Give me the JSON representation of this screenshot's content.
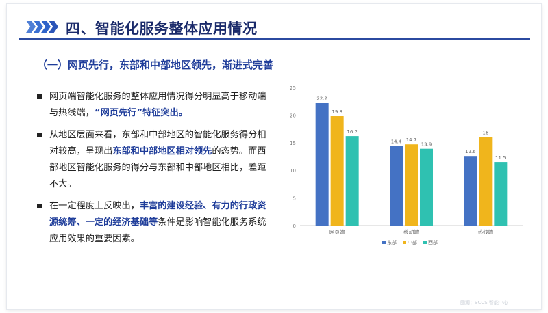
{
  "header": {
    "title": "四、智能化服务整体应用情况"
  },
  "subtitle": "（一）网页先行，东部和中部地区领先，渐进式完善",
  "bullets": [
    {
      "parts": [
        {
          "text": "网页端智能化服务的整体应用情况得分明显高于移动端与热线端，",
          "hl": false
        },
        {
          "text": "“网页先行”特征突出。",
          "hl": true
        }
      ]
    },
    {
      "parts": [
        {
          "text": "从地区层面来看，东部和中部地区的智能化服务得分相对较高，呈现出",
          "hl": false
        },
        {
          "text": "东部和中部地区相对领先",
          "hl": true
        },
        {
          "text": "的态势。而西部地区智能化服务的得分与东部和中部地区相比，差距不大。",
          "hl": false
        }
      ]
    },
    {
      "parts": [
        {
          "text": "在一定程度上反映出，",
          "hl": false
        },
        {
          "text": "丰富的建设经验、有力的行政资源统筹、一定的经济基础等",
          "hl": true
        },
        {
          "text": "条件是影响智能化服务系统应用效果的重要因素。",
          "hl": false
        }
      ]
    }
  ],
  "chart_data": {
    "type": "bar",
    "categories": [
      "网页端",
      "移动端",
      "热线端"
    ],
    "series": [
      {
        "name": "东部",
        "values": [
          22.2,
          14.4,
          12.6
        ],
        "color": "#4472c4"
      },
      {
        "name": "中部",
        "values": [
          19.8,
          14.7,
          16
        ],
        "color": "#f0b51c"
      },
      {
        "name": "西部",
        "values": [
          16.2,
          13.9,
          11.5
        ],
        "color": "#2fc1b1"
      }
    ],
    "ylim": [
      0,
      25
    ],
    "yticks": [
      0,
      5,
      10,
      15,
      20,
      25
    ],
    "data_labels": [
      [
        "22.2",
        "14.4",
        "12.6"
      ],
      [
        "19.8",
        "14.7",
        "16"
      ],
      [
        "16.2",
        "13.9",
        "11.5"
      ]
    ],
    "grid": false,
    "legend": "bottom"
  },
  "watermark": "图源：SCCS 智能中心"
}
